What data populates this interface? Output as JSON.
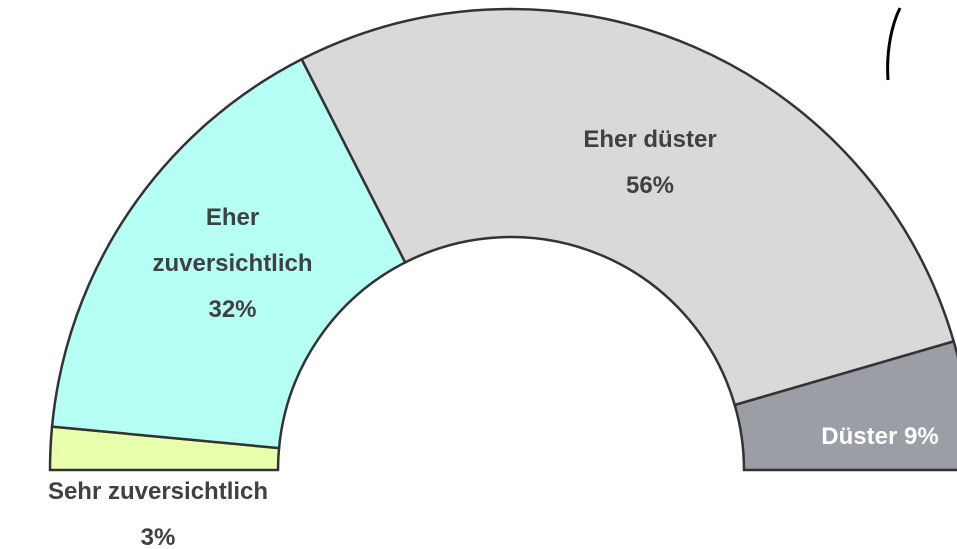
{
  "chart_data": {
    "type": "half-donut",
    "categories": [
      "Sehr zuversichtlich",
      "Eher zuversichtlich",
      "Eher düster",
      "Düster"
    ],
    "values": [
      3,
      32,
      56,
      9
    ],
    "value_labels": [
      "3%",
      "32%",
      "56%",
      "9%"
    ],
    "colors": [
      "#e8ffab",
      "#b6fff4",
      "#d9d9d9",
      "#9b9ea5"
    ]
  }
}
